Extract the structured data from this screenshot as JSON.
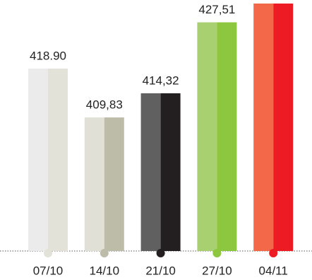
{
  "chart_data": {
    "type": "bar",
    "categories": [
      "07/10",
      "14/10",
      "21/10",
      "27/10",
      "04/11"
    ],
    "values": [
      418.9,
      409.83,
      414.32,
      427.51,
      431
    ],
    "value_labels": [
      "418.90",
      "409,83",
      "414,32",
      "427,51",
      null
    ],
    "colors": [
      [
        "#ebebeb",
        "#e2e2d8"
      ],
      [
        "#e0e0d6",
        "#bcbca8"
      ],
      [
        "#606060",
        "#231f20"
      ],
      [
        "#a8d070",
        "#8dc63f"
      ],
      [
        "#f26849",
        "#ed1c24"
      ]
    ],
    "ylim": [
      385,
      431
    ]
  }
}
